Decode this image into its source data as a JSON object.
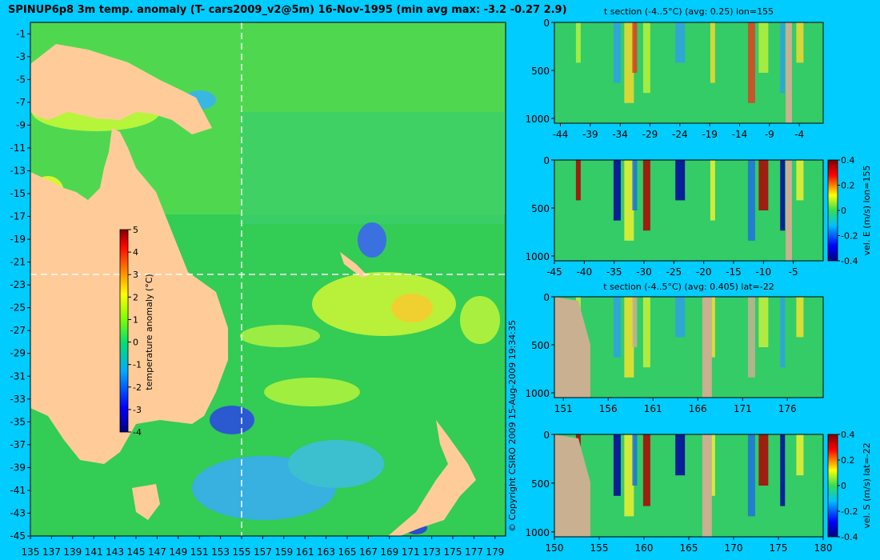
{
  "main_map": {
    "title": "SPINUP6p8 3m temp. anomaly (T- cars2009_v2@5m) 16-Nov-1995 (min avg max: -3.2 -0.27 2.9)",
    "lon_ticks": [
      "135",
      "137",
      "139",
      "141",
      "143",
      "145",
      "147",
      "149",
      "151",
      "153",
      "155",
      "157",
      "159",
      "161",
      "163",
      "165",
      "167",
      "169",
      "171",
      "173",
      "175",
      "177",
      "179"
    ],
    "lat_ticks": [
      "-1",
      "-3",
      "-5",
      "-7",
      "-9",
      "-11",
      "-13",
      "-15",
      "-17",
      "-19",
      "-21",
      "-23",
      "-25",
      "-27",
      "-29",
      "-31",
      "-33",
      "-35",
      "-37",
      "-39",
      "-41",
      "-43",
      "-45"
    ],
    "colorbar_label": "temperature anomaly (°C)",
    "colorbar_ticks": [
      "5",
      "4",
      "3",
      "2",
      "1",
      "0",
      "-1",
      "-2",
      "-3",
      "-4"
    ],
    "section_lon_marker": "155",
    "section_lat_marker": "-22"
  },
  "copyright": "© Copyright CSIRO 2009  15-Aug-2009 19:34:35",
  "panels": [
    {
      "title": "t section (-4..5°C) (avg: 0.25) lon=155",
      "x_ticks": [
        "-44",
        "-39",
        "-34",
        "-29",
        "-24",
        "-19",
        "-14",
        "-9",
        "-4"
      ],
      "y_ticks": [
        "0",
        "500",
        "1000"
      ],
      "colorbar": false
    },
    {
      "title": "",
      "x_ticks": [
        "-45",
        "-40",
        "-35",
        "-30",
        "-25",
        "-20",
        "-15",
        "-10",
        "-5"
      ],
      "y_ticks": [
        "0",
        "500",
        "1000"
      ],
      "colorbar": true,
      "colorbar_label": "vel. E (m/s) lon=155",
      "colorbar_ticks": [
        "0.4",
        "0.2",
        "0",
        "-0.2",
        "-0.4"
      ]
    },
    {
      "title": "t section (-4..5°C) (avg: 0.405) lat=-22",
      "x_ticks": [
        "151",
        "156",
        "161",
        "166",
        "171",
        "176"
      ],
      "y_ticks": [
        "0",
        "500",
        "1000"
      ],
      "colorbar": false
    },
    {
      "title": "",
      "x_ticks": [
        "150",
        "155",
        "160",
        "165",
        "170",
        "175",
        "180"
      ],
      "y_ticks": [
        "0",
        "500",
        "1000"
      ],
      "colorbar": true,
      "colorbar_label": "vel. S (m/s) lat=-22",
      "colorbar_ticks": [
        "0.4",
        "0.2",
        "0",
        "-0.2",
        "-0.4"
      ]
    }
  ],
  "chart_data": [
    {
      "type": "heatmap",
      "title": "SPINUP6p8 3m temp. anomaly (T- cars2009_v2@5m) 16-Nov-1995 (min avg max: -3.2 -0.27 2.9)",
      "xlim": [
        135,
        180
      ],
      "ylim": [
        -45,
        0
      ],
      "colorbar_range": [
        -4,
        5
      ],
      "stats": {
        "min": -3.2,
        "avg": -0.27,
        "max": 2.9
      }
    },
    {
      "type": "heatmap",
      "title": "t section (-4..5°C) (avg: 0.25) lon=155",
      "xlim": [
        -45,
        0
      ],
      "ylim": [
        1050,
        0
      ],
      "avg": 0.25
    },
    {
      "type": "heatmap",
      "colorbar_label": "vel. E (m/s) lon=155",
      "xlim": [
        -45,
        0
      ],
      "ylim": [
        1050,
        0
      ],
      "colorbar_range": [
        -0.4,
        0.4
      ]
    },
    {
      "type": "heatmap",
      "title": "t section (-4..5°C) (avg: 0.405) lat=-22",
      "xlim": [
        150,
        180
      ],
      "ylim": [
        1050,
        0
      ],
      "avg": 0.405
    },
    {
      "type": "heatmap",
      "colorbar_label": "vel. S (m/s) lat=-22",
      "xlim": [
        150,
        180
      ],
      "ylim": [
        1050,
        0
      ],
      "colorbar_range": [
        -0.4,
        0.4
      ]
    }
  ]
}
